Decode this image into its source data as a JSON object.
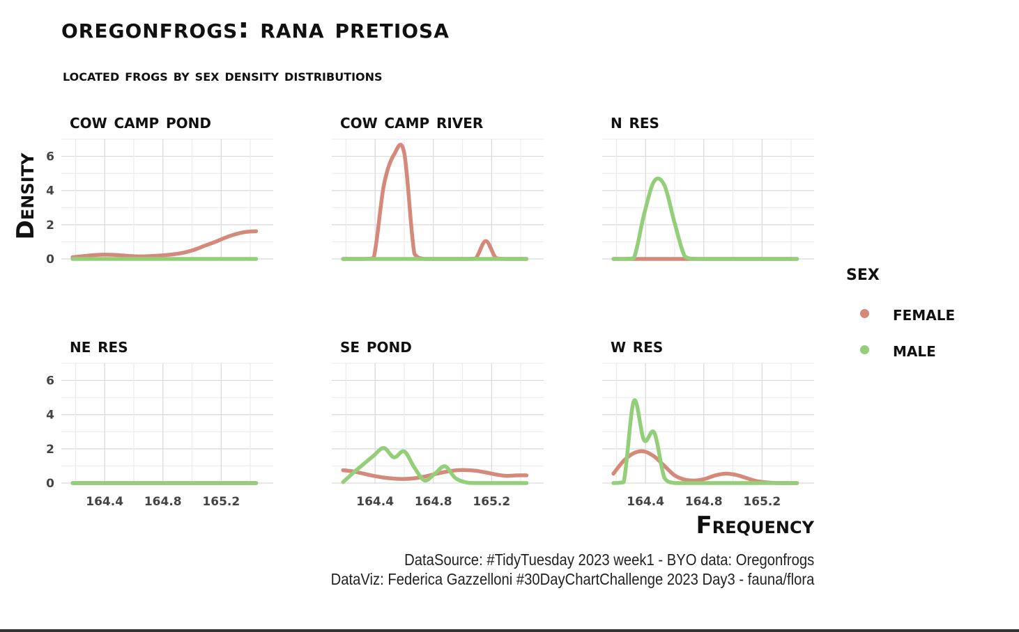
{
  "title": "OregonFrogs: Rana Pretiosa",
  "subtitle": "located frogs by sex density distributions",
  "caption": {
    "line1": "DataSource: #TidyTuesday 2023 week1 - BYO data: Oregonfrogs",
    "line2": "DataViz: Federica Gazzelloni #30DayChartChallenge 2023 Day3 - fauna/flora"
  },
  "legend": {
    "title": "sex",
    "items": [
      {
        "label": "Female",
        "color": "#D4897A"
      },
      {
        "label": "Male",
        "color": "#93CF78"
      }
    ]
  },
  "chart_data": {
    "type": "area",
    "title": "OregonFrogs: Rana Pretiosa",
    "xlabel": "Frequency",
    "ylabel": "Density",
    "xlim": [
      164.16,
      165.5
    ],
    "ylim": [
      0,
      7
    ],
    "x_ticks": [
      "164.4",
      "164.8",
      "165.2"
    ],
    "y_ticks": [
      "0",
      "2",
      "4",
      "6"
    ],
    "grid": true,
    "legend_position": "right",
    "x": [
      164.18,
      164.25,
      164.32,
      164.39,
      164.46,
      164.53,
      164.6,
      164.67,
      164.74,
      164.81,
      164.88,
      164.95,
      165.02,
      165.09,
      165.16,
      165.23,
      165.3,
      165.37,
      165.44
    ],
    "panels": [
      {
        "name": "Cow Camp Pond",
        "series": [
          {
            "name": "Female",
            "values": [
              0.1,
              0.16,
              0.22,
              0.25,
              0.24,
              0.2,
              0.16,
              0.15,
              0.18,
              0.22,
              0.28,
              0.38,
              0.55,
              0.78,
              1.0,
              1.25,
              1.45,
              1.58,
              1.62
            ]
          },
          {
            "name": "Male",
            "values": [
              0,
              0,
              0,
              0,
              0,
              0,
              0,
              0,
              0,
              0,
              0,
              0,
              0,
              0,
              0,
              0,
              0,
              0,
              0
            ]
          }
        ]
      },
      {
        "name": "Cow Camp River",
        "series": [
          {
            "name": "Female",
            "values": [
              0,
              0,
              0,
              0.05,
              4.3,
              6.1,
              6.2,
              0.3,
              0,
              0,
              0,
              0,
              0,
              0.02,
              1.05,
              0.05,
              0,
              0,
              0
            ]
          },
          {
            "name": "Male",
            "values": [
              0,
              0,
              0,
              0,
              0,
              0,
              0,
              0,
              0,
              0,
              0,
              0,
              0,
              0,
              0,
              0,
              0,
              0,
              0
            ]
          }
        ]
      },
      {
        "name": "N Res",
        "series": [
          {
            "name": "Female",
            "values": [
              0,
              0,
              0,
              0,
              0,
              0,
              0,
              0,
              0,
              0,
              0,
              0,
              0,
              0,
              0,
              0,
              0,
              0,
              0
            ]
          },
          {
            "name": "Male",
            "values": [
              0,
              0,
              0.05,
              2.6,
              4.55,
              4.3,
              2.1,
              0.15,
              0,
              0,
              0,
              0,
              0,
              0,
              0,
              0,
              0,
              0,
              0
            ]
          }
        ]
      },
      {
        "name": "NE Res",
        "series": [
          {
            "name": "Female",
            "values": [
              0,
              0,
              0,
              0,
              0,
              0,
              0,
              0,
              0,
              0,
              0,
              0,
              0,
              0,
              0,
              0,
              0,
              0,
              0
            ]
          },
          {
            "name": "Male",
            "values": [
              0,
              0,
              0,
              0,
              0,
              0,
              0,
              0,
              0,
              0,
              0,
              0,
              0,
              0,
              0,
              0,
              0,
              0,
              0
            ]
          }
        ]
      },
      {
        "name": "SE Pond",
        "series": [
          {
            "name": "Female",
            "values": [
              0.75,
              0.68,
              0.55,
              0.42,
              0.32,
              0.26,
              0.24,
              0.28,
              0.38,
              0.52,
              0.65,
              0.74,
              0.76,
              0.72,
              0.62,
              0.5,
              0.42,
              0.45,
              0.45
            ]
          },
          {
            "name": "Male",
            "values": [
              0.05,
              0.6,
              1.1,
              1.6,
              2.05,
              1.5,
              1.85,
              0.9,
              0.15,
              0.55,
              0.98,
              0.3,
              0.05,
              0,
              0,
              0,
              0,
              0,
              0
            ]
          }
        ]
      },
      {
        "name": "W Res",
        "series": [
          {
            "name": "Female",
            "values": [
              0.55,
              1.3,
              1.75,
              1.85,
              1.55,
              1.0,
              0.45,
              0.2,
              0.15,
              0.25,
              0.45,
              0.55,
              0.48,
              0.3,
              0.12,
              0.04,
              0,
              0,
              0
            ]
          },
          {
            "name": "Male",
            "values": [
              0,
              0.05,
              4.8,
              2.5,
              2.95,
              0.3,
              0,
              0,
              0,
              0,
              0,
              0,
              0,
              0,
              0,
              0,
              0,
              0,
              0
            ]
          }
        ]
      }
    ]
  }
}
